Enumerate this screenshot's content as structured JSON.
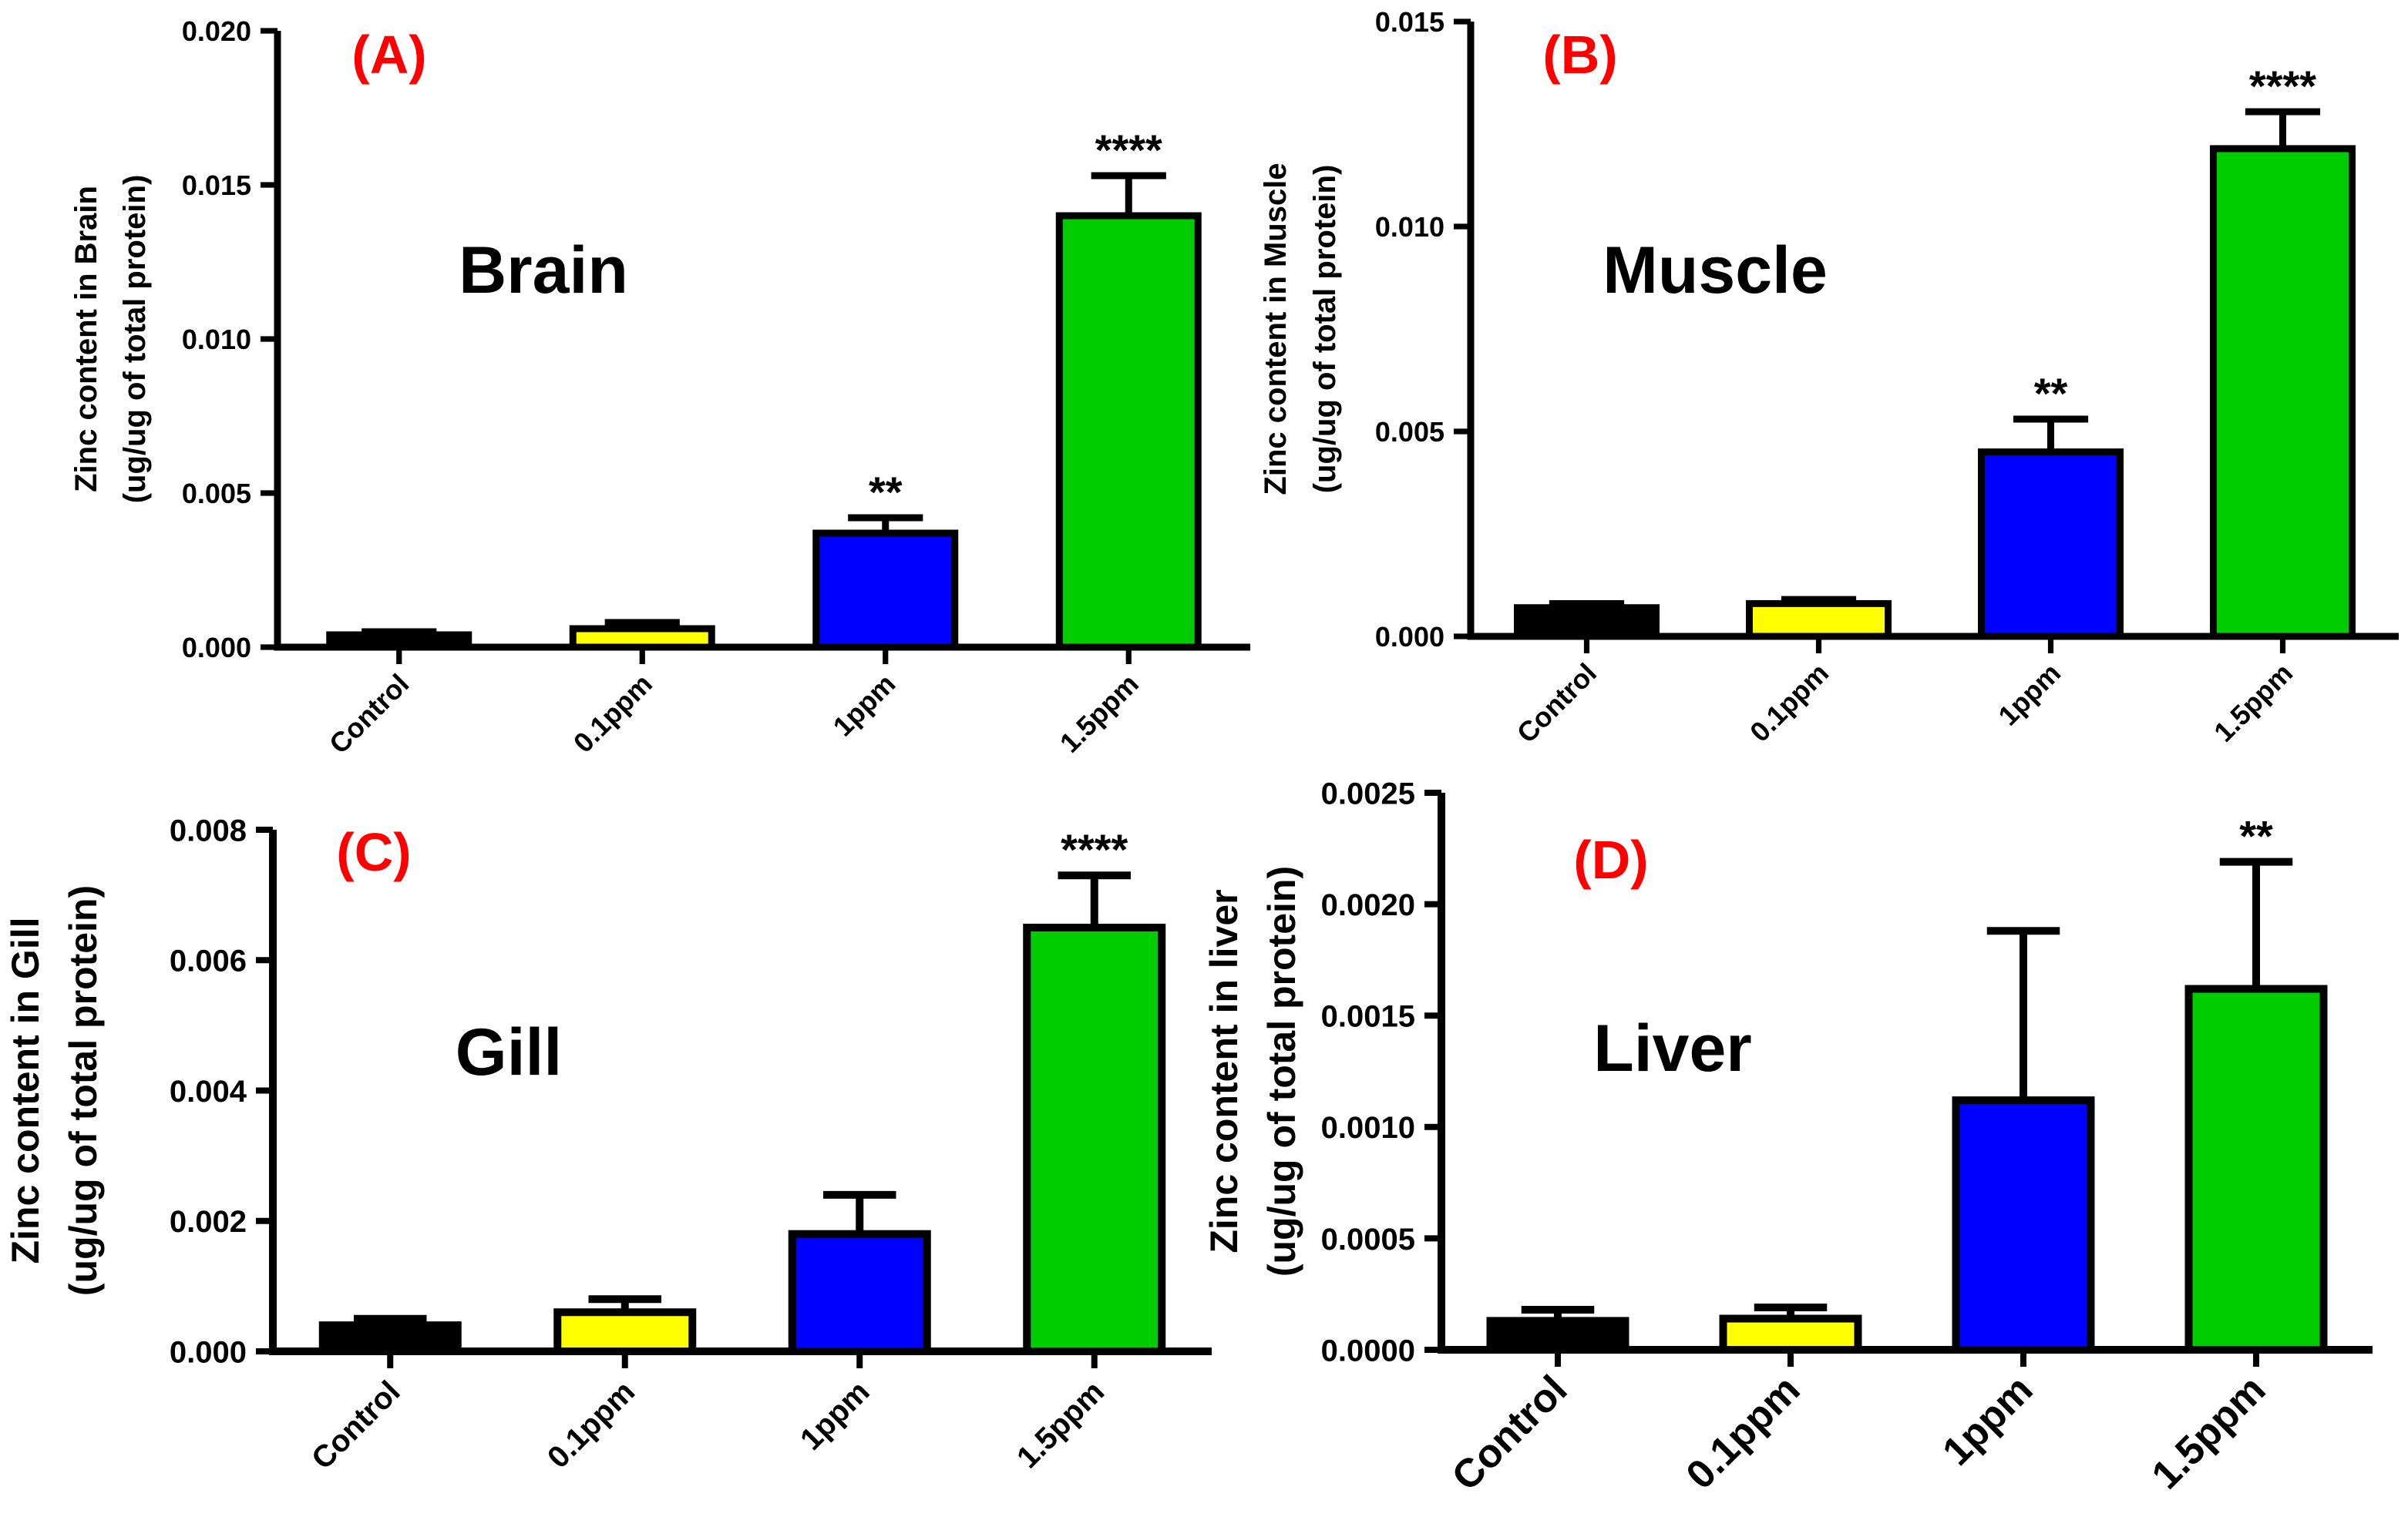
{
  "chart_data": [
    {
      "type": "bar",
      "panel_label": "(A)",
      "title": "Brain",
      "ylabel_line1": "Zinc content in Brain",
      "ylabel_line2": "(ug/ug of total protein)",
      "xlabel": "",
      "categories": [
        "Control",
        "0.1ppm",
        "1ppm",
        "1.5ppm"
      ],
      "values": [
        0.0004,
        0.0006,
        0.0037,
        0.014
      ],
      "errors": [
        0.0001,
        0.0002,
        0.0005,
        0.0013
      ],
      "significance": [
        "",
        "",
        "**",
        "****"
      ],
      "colors": [
        "#000000",
        "#ffff00",
        "#0000ff",
        "#00cc00"
      ],
      "ylim": [
        0,
        0.02
      ],
      "yticks": [
        0.0,
        0.005,
        0.01,
        0.015,
        0.02
      ],
      "ytick_labels": [
        "0.000",
        "0.005",
        "0.010",
        "0.015",
        "0.020"
      ]
    },
    {
      "type": "bar",
      "panel_label": "(B)",
      "title": "Muscle",
      "ylabel_line1": "Zinc content in Muscle",
      "ylabel_line2": "(ug/ug of total protein)",
      "xlabel": "",
      "categories": [
        "Control",
        "0.1ppm",
        "1ppm",
        "1.5ppm"
      ],
      "values": [
        0.0007,
        0.0008,
        0.0045,
        0.0119
      ],
      "errors": [
        0.0001,
        0.0001,
        0.0008,
        0.0009
      ],
      "significance": [
        "",
        "",
        "**",
        "****"
      ],
      "colors": [
        "#000000",
        "#ffff00",
        "#0000ff",
        "#00cc00"
      ],
      "ylim": [
        0,
        0.015
      ],
      "yticks": [
        0.0,
        0.005,
        0.01,
        0.015
      ],
      "ytick_labels": [
        "0.000",
        "0.005",
        "0.010",
        "0.015"
      ]
    },
    {
      "type": "bar",
      "panel_label": "(C)",
      "title": "Gill",
      "ylabel_line1": "Zinc content in Gill",
      "ylabel_line2": "(ug/ug of total protein)",
      "xlabel": "",
      "categories": [
        "Control",
        "0.1ppm",
        "1ppm",
        "1.5ppm"
      ],
      "values": [
        0.0004,
        0.0006,
        0.0018,
        0.0065
      ],
      "errors": [
        0.0001,
        0.0002,
        0.0006,
        0.0008
      ],
      "significance": [
        "",
        "",
        "",
        "****"
      ],
      "colors": [
        "#000000",
        "#ffff00",
        "#0000ff",
        "#00cc00"
      ],
      "ylim": [
        0,
        0.008
      ],
      "yticks": [
        0.0,
        0.002,
        0.004,
        0.006,
        0.008
      ],
      "ytick_labels": [
        "0.000",
        "0.002",
        "0.004",
        "0.006",
        "0.008"
      ]
    },
    {
      "type": "bar",
      "panel_label": "(D)",
      "title": "Liver",
      "ylabel_line1": "Zinc content in liver",
      "ylabel_line2": "(ug/ug of total protein)",
      "xlabel": "",
      "categories": [
        "Control",
        "0.1ppm",
        "1ppm",
        "1.5ppm"
      ],
      "values": [
        0.00013,
        0.00014,
        0.00112,
        0.00162
      ],
      "errors": [
        5e-05,
        5e-05,
        0.00076,
        0.00057
      ],
      "significance": [
        "",
        "",
        "",
        "**"
      ],
      "colors": [
        "#000000",
        "#ffff00",
        "#0000ff",
        "#00cc00"
      ],
      "ylim": [
        0,
        0.0025
      ],
      "yticks": [
        0.0,
        0.0005,
        0.001,
        0.0015,
        0.002,
        0.0025
      ],
      "ytick_labels": [
        "0.0000",
        "0.0005",
        "0.0010",
        "0.0015",
        "0.0020",
        "0.0025"
      ]
    }
  ]
}
